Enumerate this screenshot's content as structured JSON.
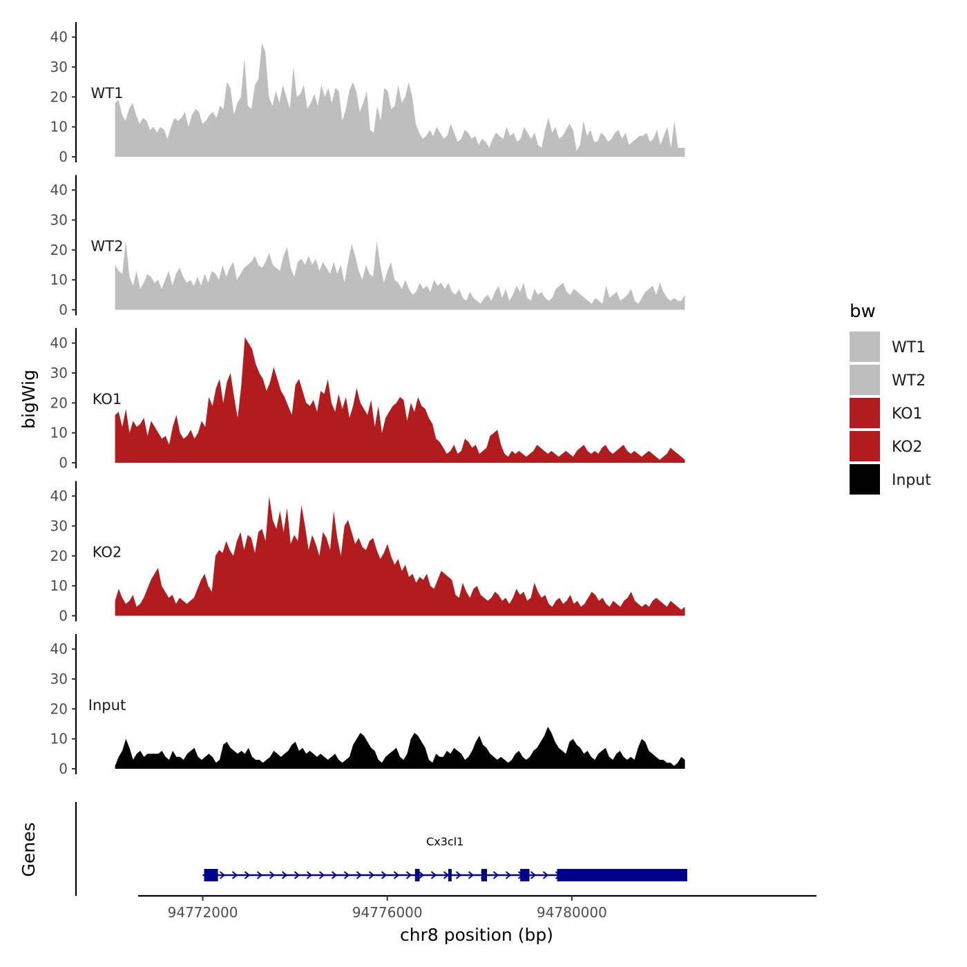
{
  "chart_data": {
    "type": "area",
    "title": "",
    "ylabel": "bigWig",
    "xlabel": "chr8 position (bp)",
    "ylim": [
      0,
      45
    ],
    "y_ticks": [
      0,
      10,
      20,
      30,
      40
    ],
    "xlim": [
      94770600,
      94785300
    ],
    "x_ticks": [
      94772000,
      94776000,
      94780000
    ],
    "x_tick_labels": [
      "94772000",
      "94776000",
      "94780000"
    ],
    "data_range": [
      94770100,
      94782450
    ],
    "legend": {
      "title": "bw",
      "placement": "right",
      "entries": [
        {
          "label": "WT1",
          "color": "#bebebe"
        },
        {
          "label": "WT2",
          "color": "#bebebe"
        },
        {
          "label": "KO1",
          "color": "#b21c1e"
        },
        {
          "label": "KO2",
          "color": "#b21c1e"
        },
        {
          "label": "Input",
          "color": "#000000"
        }
      ]
    },
    "series": [
      {
        "name": "WT1",
        "color": "#bebebe",
        "values": [
          18,
          19,
          14,
          12,
          16,
          18,
          14,
          11,
          13,
          12,
          9,
          10,
          8,
          10,
          9,
          6,
          10,
          13,
          12,
          13,
          15,
          10,
          14,
          16,
          15,
          11,
          12,
          14,
          15,
          13,
          17,
          16,
          25,
          23,
          14,
          18,
          20,
          33,
          17,
          16,
          24,
          26,
          38,
          35,
          20,
          17,
          22,
          18,
          24,
          20,
          16,
          30,
          20,
          21,
          24,
          16,
          18,
          21,
          17,
          24,
          20,
          23,
          18,
          23,
          22,
          12,
          16,
          22,
          25,
          22,
          15,
          18,
          22,
          9,
          8,
          17,
          12,
          23,
          22,
          16,
          17,
          24,
          18,
          20,
          25,
          20,
          11,
          8,
          6,
          7,
          9,
          7,
          10,
          8,
          6,
          7,
          11,
          8,
          5,
          6,
          9,
          8,
          6,
          7,
          4,
          6,
          5,
          3,
          6,
          8,
          7,
          6,
          10,
          7,
          8,
          5,
          6,
          10,
          8,
          6,
          8,
          4,
          3,
          9,
          13,
          8,
          10,
          6,
          7,
          9,
          11,
          9,
          2,
          4,
          12,
          7,
          9,
          5,
          5,
          8,
          7,
          5,
          6,
          8,
          9,
          6,
          8,
          4,
          5,
          6,
          7,
          7,
          8,
          5,
          6,
          9,
          4,
          7,
          10,
          3,
          12,
          3,
          3,
          3
        ]
      },
      {
        "name": "WT2",
        "color": "#bebebe",
        "values": [
          15,
          13,
          12,
          23,
          11,
          8,
          13,
          7,
          9,
          12,
          11,
          9,
          10,
          7,
          10,
          13,
          8,
          12,
          14,
          11,
          9,
          10,
          8,
          11,
          8,
          12,
          9,
          13,
          12,
          10,
          15,
          11,
          14,
          16,
          10,
          12,
          14,
          15,
          16,
          18,
          15,
          14,
          16,
          19,
          15,
          14,
          13,
          18,
          21,
          14,
          11,
          16,
          17,
          15,
          18,
          15,
          17,
          13,
          16,
          14,
          12,
          16,
          12,
          15,
          9,
          16,
          22,
          18,
          13,
          10,
          15,
          12,
          11,
          23,
          15,
          9,
          13,
          16,
          10,
          9,
          7,
          10,
          7,
          5,
          6,
          9,
          7,
          8,
          6,
          10,
          8,
          9,
          7,
          9,
          6,
          5,
          7,
          4,
          3,
          6,
          4,
          3,
          2,
          4,
          5,
          3,
          6,
          8,
          4,
          7,
          3,
          5,
          8,
          6,
          9,
          4,
          3,
          7,
          5,
          6,
          4,
          3,
          4,
          7,
          8,
          9,
          6,
          5,
          7,
          6,
          5,
          4,
          3,
          2,
          4,
          3,
          2,
          8,
          4,
          5,
          6,
          3,
          4,
          5,
          7,
          3,
          2,
          4,
          6,
          7,
          8,
          5,
          9,
          6,
          4,
          3,
          4,
          3,
          3,
          5
        ]
      },
      {
        "name": "KO1",
        "color": "#b21c1e",
        "values": [
          16,
          17,
          12,
          18,
          10,
          14,
          12,
          13,
          15,
          9,
          14,
          12,
          10,
          8,
          9,
          6,
          12,
          16,
          10,
          8,
          9,
          11,
          8,
          10,
          14,
          12,
          22,
          19,
          25,
          28,
          20,
          27,
          30,
          22,
          15,
          26,
          42,
          40,
          38,
          33,
          30,
          28,
          24,
          27,
          32,
          28,
          24,
          22,
          19,
          16,
          26,
          28,
          24,
          20,
          19,
          21,
          17,
          24,
          23,
          28,
          20,
          17,
          23,
          18,
          22,
          15,
          19,
          25,
          20,
          18,
          16,
          21,
          12,
          19,
          10,
          15,
          17,
          19,
          20,
          22,
          21,
          14,
          20,
          17,
          22,
          19,
          18,
          15,
          13,
          8,
          7,
          5,
          3,
          4,
          6,
          3,
          4,
          8,
          7,
          5,
          6,
          3,
          4,
          5,
          9,
          10,
          11,
          6,
          3,
          2,
          4,
          3,
          4,
          3,
          2,
          3,
          4,
          6,
          5,
          4,
          3,
          4,
          3,
          2,
          3,
          4,
          3,
          2,
          4,
          5,
          6,
          4,
          3,
          4,
          3,
          5,
          6,
          4,
          3,
          4,
          5,
          6,
          4,
          3,
          4,
          3,
          2,
          3,
          4,
          3,
          2,
          1,
          2,
          3,
          5,
          4,
          3,
          2,
          1
        ]
      },
      {
        "name": "KO2",
        "color": "#b21c1e",
        "values": [
          5,
          9,
          6,
          4,
          5,
          7,
          3,
          4,
          6,
          9,
          12,
          14,
          16,
          10,
          8,
          6,
          7,
          4,
          6,
          5,
          4,
          5,
          6,
          9,
          12,
          14,
          10,
          8,
          20,
          22,
          21,
          25,
          22,
          20,
          25,
          28,
          22,
          27,
          26,
          21,
          28,
          29,
          25,
          40,
          32,
          29,
          35,
          28,
          36,
          24,
          27,
          25,
          37,
          30,
          22,
          27,
          24,
          20,
          28,
          26,
          22,
          35,
          26,
          20,
          30,
          32,
          28,
          24,
          26,
          23,
          22,
          25,
          26,
          22,
          19,
          21,
          24,
          20,
          17,
          19,
          15,
          17,
          13,
          14,
          11,
          13,
          12,
          14,
          10,
          9,
          12,
          15,
          14,
          13,
          12,
          7,
          6,
          11,
          8,
          6,
          9,
          10,
          7,
          6,
          5,
          6,
          8,
          7,
          5,
          6,
          4,
          6,
          9,
          7,
          8,
          5,
          6,
          11,
          8,
          6,
          7,
          4,
          3,
          5,
          6,
          4,
          5,
          7,
          4,
          5,
          3,
          4,
          6,
          8,
          7,
          5,
          6,
          4,
          3,
          5,
          4,
          3,
          5,
          6,
          8,
          5,
          4,
          3,
          4,
          3,
          5,
          6,
          5,
          4,
          3,
          5,
          4,
          3,
          2,
          3
        ]
      },
      {
        "name": "Input",
        "color": "#000000",
        "values": [
          1,
          4,
          6,
          10,
          7,
          3,
          5,
          6,
          4,
          5,
          5,
          5,
          5,
          6,
          4,
          3,
          6,
          4,
          4,
          3,
          5,
          6,
          7,
          4,
          3,
          4,
          5,
          4,
          2,
          3,
          8,
          9,
          7,
          6,
          5,
          6,
          5,
          7,
          4,
          3,
          3,
          2,
          3,
          4,
          6,
          5,
          4,
          5,
          6,
          8,
          9,
          6,
          7,
          5,
          6,
          5,
          4,
          5,
          4,
          3,
          4,
          5,
          3,
          2,
          3,
          4,
          8,
          10,
          12,
          11,
          9,
          7,
          6,
          3,
          2,
          4,
          5,
          6,
          7,
          4,
          3,
          5,
          10,
          12,
          11,
          9,
          7,
          3,
          2,
          5,
          4,
          4,
          6,
          5,
          7,
          6,
          5,
          3,
          4,
          6,
          9,
          11,
          8,
          7,
          5,
          4,
          3,
          4,
          3,
          2,
          3,
          5,
          6,
          4,
          3,
          4,
          6,
          7,
          9,
          11,
          14,
          12,
          9,
          7,
          6,
          5,
          9,
          10,
          8,
          7,
          5,
          6,
          4,
          3,
          5,
          6,
          7,
          4,
          3,
          5,
          6,
          4,
          3,
          4,
          3,
          7,
          10,
          9,
          6,
          5,
          4,
          3,
          3,
          2,
          2,
          1,
          2,
          4,
          3
        ]
      }
    ],
    "gene": {
      "name": "Cx3cl1",
      "strand": "+",
      "start": 94772000,
      "end": 94782500,
      "exons": [
        [
          94772030,
          94772330
        ],
        [
          94776600,
          94776700
        ],
        [
          94777320,
          94777390
        ],
        [
          94778040,
          94778160
        ],
        [
          94778880,
          94779080
        ],
        [
          94779680,
          94782500
        ]
      ]
    },
    "genes_track_label": "Genes"
  }
}
